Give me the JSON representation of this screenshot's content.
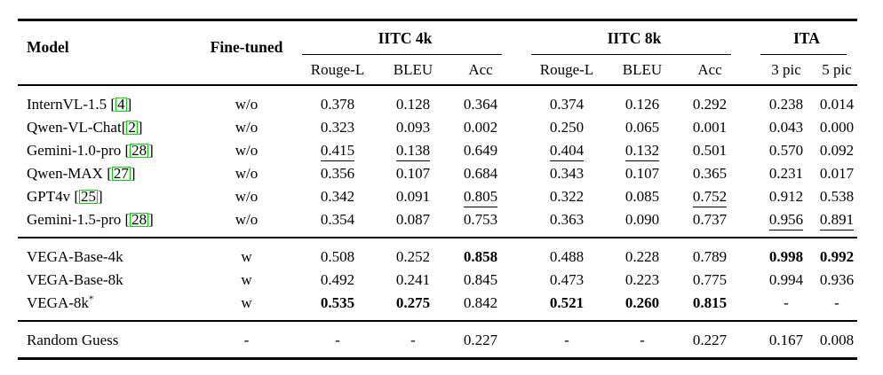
{
  "colors": {
    "citation_box": "#00dc00",
    "text": "#000000",
    "background": "#ffffff"
  },
  "table": {
    "headers": {
      "model": "Model",
      "fine_tuned": "Fine-tuned",
      "groups": [
        {
          "label": "IITC 4k",
          "cols": [
            "Rouge-L",
            "BLEU",
            "Acc"
          ]
        },
        {
          "label": "IITC 8k",
          "cols": [
            "Rouge-L",
            "BLEU",
            "Acc"
          ]
        },
        {
          "label": "ITA",
          "cols": [
            "3 pic",
            "5 pic"
          ]
        }
      ]
    },
    "rows": [
      {
        "section": "baselines",
        "model": {
          "name": "InternVL-1.5 ",
          "cite": "4"
        },
        "fine_tuned": "w/o",
        "values": [
          {
            "v": "0.378"
          },
          {
            "v": "0.128"
          },
          {
            "v": "0.364"
          },
          {
            "v": "0.374"
          },
          {
            "v": "0.126"
          },
          {
            "v": "0.292"
          },
          {
            "v": "0.238"
          },
          {
            "v": "0.014"
          }
        ]
      },
      {
        "section": "baselines",
        "model": {
          "name": "Qwen-VL-Chat",
          "cite": "2"
        },
        "fine_tuned": "w/o",
        "values": [
          {
            "v": "0.323"
          },
          {
            "v": "0.093"
          },
          {
            "v": "0.002"
          },
          {
            "v": "0.250"
          },
          {
            "v": "0.065"
          },
          {
            "v": "0.001"
          },
          {
            "v": "0.043"
          },
          {
            "v": "0.000"
          }
        ]
      },
      {
        "section": "baselines",
        "model": {
          "name": "Gemini-1.0-pro ",
          "cite": "28"
        },
        "fine_tuned": "w/o",
        "values": [
          {
            "v": "0.415",
            "s": "u"
          },
          {
            "v": "0.138",
            "s": "u"
          },
          {
            "v": "0.649"
          },
          {
            "v": "0.404",
            "s": "u"
          },
          {
            "v": "0.132",
            "s": "u"
          },
          {
            "v": "0.501"
          },
          {
            "v": "0.570"
          },
          {
            "v": "0.092"
          }
        ]
      },
      {
        "section": "baselines",
        "model": {
          "name": "Qwen-MAX ",
          "cite": "27"
        },
        "fine_tuned": "w/o",
        "values": [
          {
            "v": "0.356"
          },
          {
            "v": "0.107"
          },
          {
            "v": "0.684"
          },
          {
            "v": "0.343"
          },
          {
            "v": "0.107"
          },
          {
            "v": "0.365"
          },
          {
            "v": "0.231"
          },
          {
            "v": "0.017"
          }
        ]
      },
      {
        "section": "baselines",
        "model": {
          "name": "GPT4v ",
          "cite": "25"
        },
        "fine_tuned": "w/o",
        "values": [
          {
            "v": "0.342"
          },
          {
            "v": "0.091"
          },
          {
            "v": "0.805",
            "s": "u"
          },
          {
            "v": "0.322"
          },
          {
            "v": "0.085"
          },
          {
            "v": "0.752",
            "s": "u"
          },
          {
            "v": "0.912"
          },
          {
            "v": "0.538"
          }
        ]
      },
      {
        "section": "baselines",
        "model": {
          "name": "Gemini-1.5-pro ",
          "cite": "28"
        },
        "fine_tuned": "w/o",
        "values": [
          {
            "v": "0.354"
          },
          {
            "v": "0.087"
          },
          {
            "v": "0.753"
          },
          {
            "v": "0.363"
          },
          {
            "v": "0.090"
          },
          {
            "v": "0.737"
          },
          {
            "v": "0.956",
            "s": "u"
          },
          {
            "v": "0.891",
            "s": "u"
          }
        ]
      },
      {
        "section": "vega",
        "model": {
          "name": "VEGA-Base-4k"
        },
        "fine_tuned": "w",
        "values": [
          {
            "v": "0.508"
          },
          {
            "v": "0.252"
          },
          {
            "v": "0.858",
            "s": "b"
          },
          {
            "v": "0.488"
          },
          {
            "v": "0.228"
          },
          {
            "v": "0.789"
          },
          {
            "v": "0.998",
            "s": "b"
          },
          {
            "v": "0.992",
            "s": "b"
          }
        ]
      },
      {
        "section": "vega",
        "model": {
          "name": "VEGA-Base-8k"
        },
        "fine_tuned": "w",
        "values": [
          {
            "v": "0.492"
          },
          {
            "v": "0.241"
          },
          {
            "v": "0.845"
          },
          {
            "v": "0.473"
          },
          {
            "v": "0.223"
          },
          {
            "v": "0.775"
          },
          {
            "v": "0.994"
          },
          {
            "v": "0.936"
          }
        ]
      },
      {
        "section": "vega",
        "model": {
          "name": "VEGA-8k",
          "sup": "*"
        },
        "fine_tuned": "w",
        "values": [
          {
            "v": "0.535",
            "s": "b"
          },
          {
            "v": "0.275",
            "s": "b"
          },
          {
            "v": "0.842"
          },
          {
            "v": "0.521",
            "s": "b"
          },
          {
            "v": "0.260",
            "s": "b"
          },
          {
            "v": "0.815",
            "s": "b"
          },
          {
            "v": "-"
          },
          {
            "v": "-"
          }
        ]
      },
      {
        "section": "random",
        "model": {
          "name": "Random Guess"
        },
        "fine_tuned": "-",
        "values": [
          {
            "v": "-"
          },
          {
            "v": "-"
          },
          {
            "v": "0.227"
          },
          {
            "v": "-"
          },
          {
            "v": "-"
          },
          {
            "v": "0.227"
          },
          {
            "v": "0.167"
          },
          {
            "v": "0.008"
          }
        ]
      }
    ]
  }
}
